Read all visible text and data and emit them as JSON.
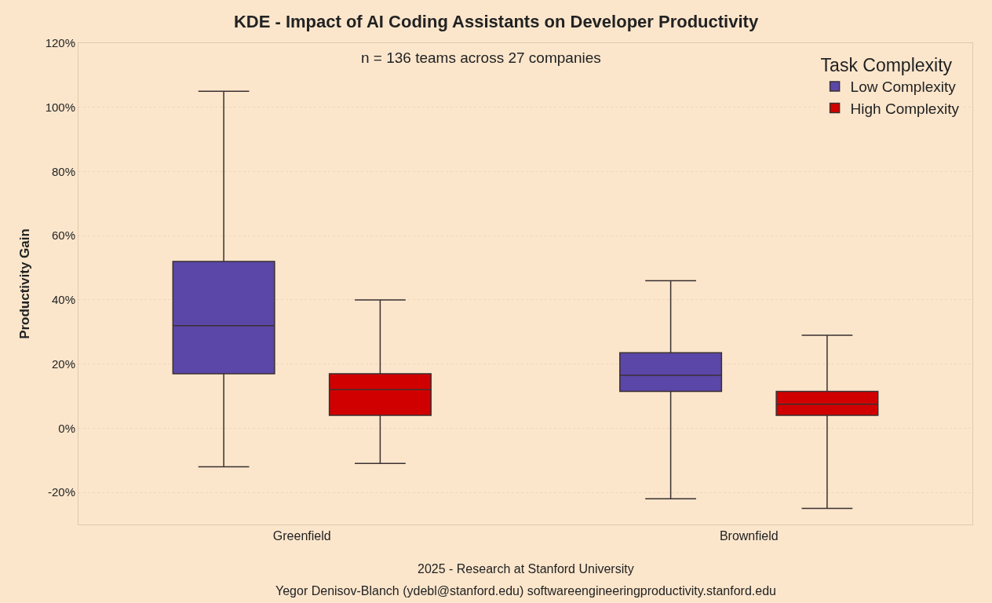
{
  "chart_data": {
    "type": "box",
    "title": "KDE - Impact of AI Coding Assistants on Developer Productivity",
    "subtitle": "n = 136 teams across 27 companies",
    "ylabel": "Productivity Gain",
    "legend_title": "Task Complexity",
    "categories": [
      "Greenfield",
      "Brownfield"
    ],
    "series": [
      {
        "name": "Low Complexity",
        "color": "#5b47a8",
        "boxes": [
          {
            "low": -12,
            "q1": 17,
            "median": 32,
            "q3": 52,
            "high": 105
          },
          {
            "low": -22,
            "q1": 11.5,
            "median": 16.5,
            "q3": 23.5,
            "high": 46
          }
        ]
      },
      {
        "name": "High Complexity",
        "color": "#d10000",
        "boxes": [
          {
            "low": -11,
            "q1": 4,
            "median": 12,
            "q3": 17,
            "high": 40
          },
          {
            "low": -25,
            "q1": 4,
            "median": 7.5,
            "q3": 11.5,
            "high": 29
          }
        ]
      }
    ],
    "ylim": [
      -30,
      120
    ],
    "yticks": [
      {
        "value": -20,
        "label": "-20%"
      },
      {
        "value": 0,
        "label": "0%"
      },
      {
        "value": 20,
        "label": "20%"
      },
      {
        "value": 40,
        "label": "40%"
      },
      {
        "value": 60,
        "label": "60%"
      },
      {
        "value": 80,
        "label": "80%"
      },
      {
        "value": 100,
        "label": "100%"
      },
      {
        "value": 120,
        "label": "120%"
      }
    ],
    "grid": "y",
    "legend": "top right",
    "annotations": [
      "2025 - Research at Stanford University",
      "Yegor Denisov-Blanch (ydebl@stanford.edu) softwareengineeringproductivity.stanford.edu"
    ]
  }
}
